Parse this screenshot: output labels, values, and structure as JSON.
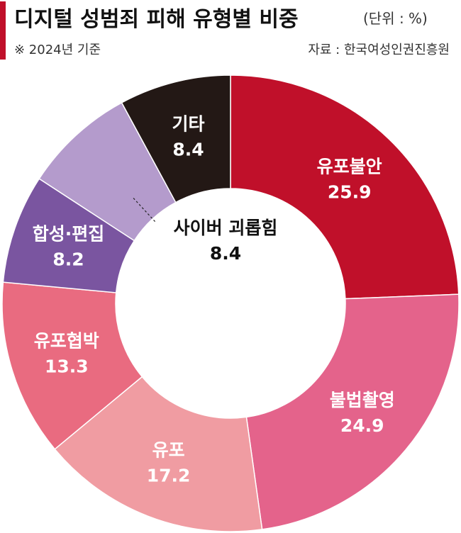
{
  "chart_data": {
    "type": "donut",
    "title": "디지털 성범죄 피해 유형별 비중",
    "unit": "(단위 : %)",
    "note": "※ 2024년 기준",
    "source": "자료 : 한국여성인권진흥원",
    "categories": [
      "유포불안",
      "불법촬영",
      "유포",
      "유포협박",
      "합성·편집",
      "사이버 괴롭힘",
      "기타"
    ],
    "values": [
      25.9,
      24.9,
      17.2,
      13.3,
      8.2,
      8.4,
      8.4
    ],
    "colors": [
      "#c0102a",
      "#e4638b",
      "#f09ca2",
      "#e96b80",
      "#7a55a0",
      "#b49bcc",
      "#231815"
    ]
  }
}
